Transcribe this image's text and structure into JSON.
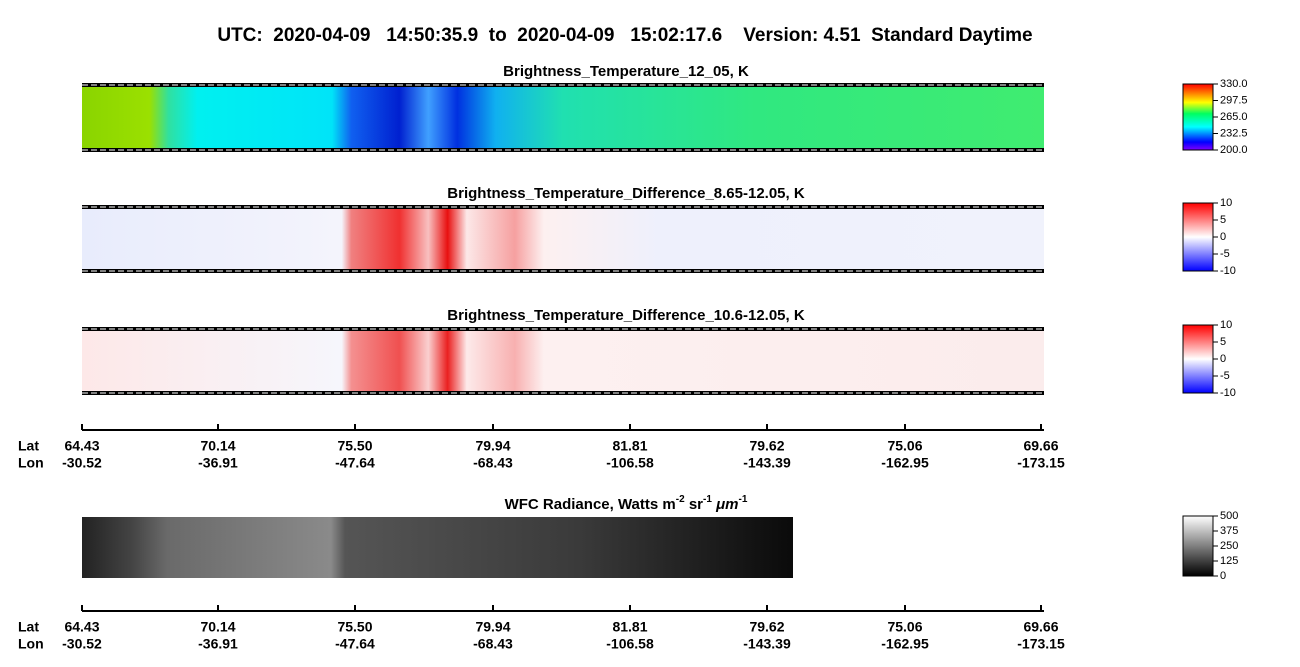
{
  "header": {
    "title": "UTC:  2020-04-09   14:50:35.9  to  2020-04-09   15:02:17.6    Version: 4.51  Standard Daytime"
  },
  "panels": [
    {
      "title": "Brightness_Temperature_12_05, K",
      "colorbar": [
        "330.0",
        "297.5",
        "265.0",
        "232.5",
        "200.0"
      ]
    },
    {
      "title": "Brightness_Temperature_Difference_8.65-12.05, K",
      "colorbar": [
        "10",
        "5",
        "0",
        "-5",
        "-10"
      ]
    },
    {
      "title": "Brightness_Temperature_Difference_10.6-12.05, K",
      "colorbar": [
        "10",
        "5",
        "0",
        "-5",
        "-10"
      ]
    }
  ],
  "radiance_panel": {
    "title_parts": [
      "WFC Radiance, Watts m",
      "-2",
      " sr",
      "-1",
      " ",
      "μm",
      "-1"
    ],
    "colorbar": [
      "500",
      "375",
      "250",
      "125",
      "0"
    ]
  },
  "axes": [
    {
      "lat_label": "Lat",
      "lon_label": "Lon",
      "lat": [
        "64.43",
        "70.14",
        "75.50",
        "79.94",
        "81.81",
        "79.62",
        "75.06",
        "69.66"
      ],
      "lon": [
        "-30.52",
        "-36.91",
        "-47.64",
        "-68.43",
        "-106.58",
        "-143.39",
        "-162.95",
        "-173.15"
      ]
    },
    {
      "lat_label": "Lat",
      "lon_label": "Lon",
      "lat": [
        "64.43",
        "70.14",
        "75.50",
        "79.94",
        "81.81",
        "79.62",
        "75.06",
        "69.66"
      ],
      "lon": [
        "-30.52",
        "-36.91",
        "-47.64",
        "-68.43",
        "-106.58",
        "-143.39",
        "-162.95",
        "-173.15"
      ]
    }
  ]
}
